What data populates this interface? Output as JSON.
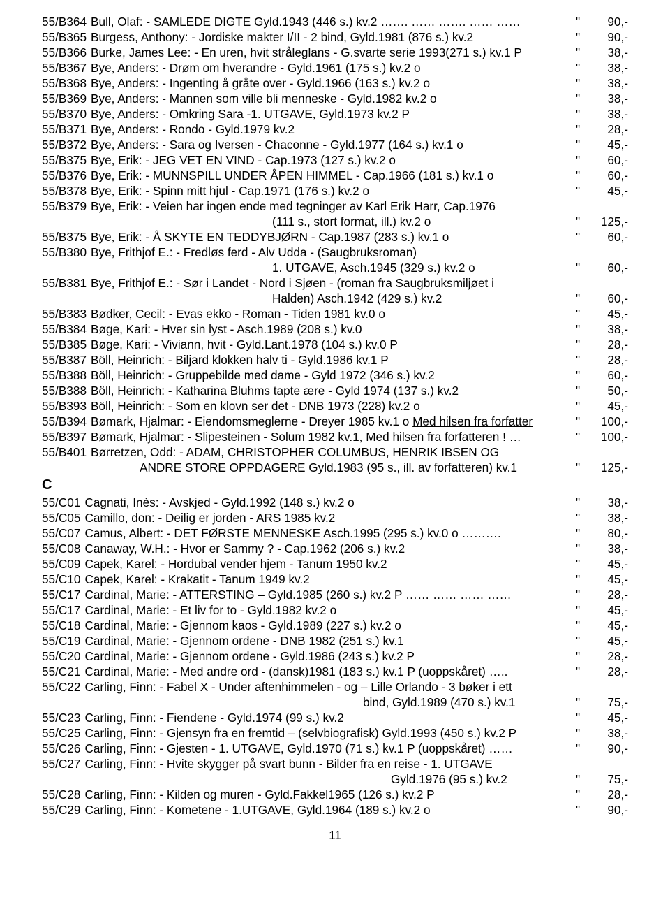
{
  "colors": {
    "text": "#000000",
    "bg": "#ffffff"
  },
  "typography": {
    "family": "Arial",
    "size_pt": 13,
    "line_height": 1.28
  },
  "page_number": "11",
  "section_letter": "C",
  "entries": [
    {
      "code": "55/B364",
      "desc": "Bull, Olaf: - SAMLEDE DIGTE Gyld.1943 (446 s.) kv.2 ……. …… ……. …… ……",
      "q": "\"",
      "price": "90,-",
      "dots": false
    },
    {
      "code": "55/B365",
      "desc": "Burgess, Anthony: - Jordiske makter I/II - 2 bind, Gyld.1981 (876 s.) kv.2",
      "q": "\"",
      "price": "90,-",
      "dots": true
    },
    {
      "code": "55/B366",
      "desc": "Burke, James Lee: - En uren, hvit stråleglans - G.svarte serie 1993(271 s.) kv.1 P",
      "q": "\"",
      "price": "38,-",
      "dots": false
    },
    {
      "code": "55/B367",
      "desc": "Bye, Anders: - Drøm om hverandre - Gyld.1961 (175 s.) kv.2 o",
      "q": "\"",
      "price": "38,-",
      "dots": true
    },
    {
      "code": "55/B368",
      "desc": "Bye, Anders: - Ingenting å gråte over - Gyld.1966 (163 s.) kv.2 o",
      "q": "\"",
      "price": "38,-",
      "dots": true
    },
    {
      "code": "55/B369",
      "desc": "Bye, Anders: - Mannen som ville bli menneske - Gyld.1982 kv.2 o",
      "q": "\"",
      "price": "38,-",
      "dots": true
    },
    {
      "code": "55/B370",
      "desc": "Bye, Anders: - Omkring Sara -1. UTGAVE, Gyld.1973 kv.2 P",
      "q": "\"",
      "price": "38,-",
      "dots": true
    },
    {
      "code": "55/B371",
      "desc": "Bye, Anders: - Rondo - Gyld.1979 kv.2",
      "q": "\"",
      "price": "28,-",
      "dots": true
    },
    {
      "code": "55/B372",
      "desc": "Bye, Anders: - Sara og Iversen - Chaconne - Gyld.1977 (164 s.) kv.1 o",
      "q": "\"",
      "price": "45,-",
      "dots": true
    },
    {
      "code": "55/B375",
      "desc": "Bye, Erik: - JEG VET EN VIND - Cap.1973 (127 s.) kv.2 o",
      "q": "\"",
      "price": "60,-",
      "dots": true
    },
    {
      "code": "55/B376",
      "desc": "Bye, Erik: - MUNNSPILL UNDER ÅPEN HIMMEL - Cap.1966 (181 s.) kv.1 o",
      "q": "\"",
      "price": "60,-",
      "dots": true
    },
    {
      "code": "55/B378",
      "desc": "Bye, Erik: - Spinn mitt hjul - Cap.1971 (176 s.) kv.2 o",
      "q": "\"",
      "price": "45,-",
      "dots": true
    },
    {
      "code": "55/B379",
      "desc": "Bye, Erik: - Veien har ingen ende med tegninger av Karl Erik Harr, Cap.1976",
      "cont": true
    },
    {
      "code": "",
      "desc": "(111 s., stort format, ill.) kv.2 o",
      "q": "\"",
      "price": "125,-",
      "dots": false,
      "indent": true
    },
    {
      "code": "55/B375",
      "desc": "Bye, Erik: - Å SKYTE EN TEDDYBJØRN - Cap.1987 (283 s.) kv.1 o",
      "q": "\"",
      "price": "60,-",
      "dots": true
    },
    {
      "code": "55/B380",
      "desc": "Bye, Frithjof E.: - Fredløs ferd - Alv Udda - (Saugbruksroman)",
      "cont": true
    },
    {
      "code": "",
      "desc": "1. UTGAVE, Asch.1945 (329 s.) kv.2 o",
      "q": "\"",
      "price": "60,-",
      "dots": false,
      "indent": true
    },
    {
      "code": "55/B381",
      "desc": "Bye, Frithjof E.: - Sør i Landet - Nord i Sjøen - (roman fra Saugbruksmiljøet i",
      "cont": true
    },
    {
      "code": "",
      "desc": "Halden) Asch.1942 (429 s.) kv.2",
      "q": "\"",
      "price": "60,-",
      "dots": false,
      "indent": true
    },
    {
      "code": "55/B383",
      "desc": "Bødker, Cecil: - Evas ekko - Roman - Tiden 1981 kv.0 o",
      "q": "\"",
      "price": "45,-",
      "dots": true
    },
    {
      "code": "55/B384",
      "desc": "Bøge, Kari: - Hver sin lyst - Asch.1989 (208 s.) kv.0",
      "q": "\"",
      "price": "38,-",
      "dots": true
    },
    {
      "code": "55/B385",
      "desc": "Bøge, Kari: - Viviann, hvit - Gyld.Lant.1978 (104 s.) kv.0 P",
      "q": "\"",
      "price": "28,-",
      "dots": true
    },
    {
      "code": "55/B387",
      "desc": "Böll, Heinrich: - Biljard klokken halv ti - Gyld.1986 kv.1 P",
      "q": "\"",
      "price": "28,-",
      "dots": true
    },
    {
      "code": "55/B388",
      "desc": "Böll, Heinrich: - Gruppebilde med dame - Gyld 1972 (346 s.) kv.2",
      "q": "\"",
      "price": "60,-",
      "dots": true
    },
    {
      "code": "55/B388",
      "desc": "Böll, Heinrich: - Katharina Bluhms tapte ære - Gyld 1974 (137 s.) kv.2",
      "q": "\"",
      "price": "50,-",
      "dots": true
    },
    {
      "code": "55/B393",
      "desc": "Böll, Heinrich: - Som en klovn ser det - DNB 1973 (228) kv.2 o",
      "q": "\"",
      "price": "45,-",
      "dots": true
    },
    {
      "code": "55/B394",
      "desc": "Bømark, Hjalmar: - Eiendomsmeglerne - Dreyer 1985 kv.1 o <u>Med hilsen fra forfatter</u>",
      "q": "\"",
      "price": "100,-",
      "dots": false
    },
    {
      "code": "55/B397",
      "desc": "Bømark, Hjalmar: - Slipesteinen - Solum 1982 kv.1, <u>Med hilsen fra forfatteren !</u> …",
      "q": "\"",
      "price": "100,-",
      "dots": false
    },
    {
      "code": "55/B401",
      "desc": "Børretzen, Odd: - ADAM, CHRISTOPHER COLUMBUS, HENRIK IBSEN OG",
      "cont": true
    },
    {
      "code": "",
      "desc": "ANDRE STORE OPPDAGERE Gyld.1983 (95 s., ill. av forfatteren) kv.1",
      "q": "\"",
      "price": "125,-",
      "dots": false,
      "indent3": true
    },
    {
      "code": "55/C01",
      "desc": "Cagnati, Inès: - Avskjed - Gyld.1992 (148 s.) kv.2 o",
      "q": "\"",
      "price": "38,-",
      "dots": true
    },
    {
      "code": "55/C05",
      "desc": "Camillo, don: - Deilig er jorden - ARS 1985 kv.2",
      "q": "\"",
      "price": "38,-",
      "dots": true
    },
    {
      "code": "55/C07",
      "desc": "Camus, Albert: - DET FØRSTE MENNESKE Asch.1995 (295 s.) kv.0 o ……….",
      "q": "\"",
      "price": "80,-",
      "dots": false
    },
    {
      "code": "55/C08",
      "desc": "Canaway, W.H.: - Hvor er Sammy ? - Cap.1962 (206 s.) kv.2",
      "q": "\"",
      "price": "38,-",
      "dots": true
    },
    {
      "code": "55/C09",
      "desc": "Capek, Karel: - Hordubal vender hjem - Tanum 1950 kv.2",
      "q": "\"",
      "price": "45,-",
      "dots": true
    },
    {
      "code": "55/C10",
      "desc": "Capek, Karel: - Krakatit - Tanum 1949 kv.2",
      "q": "\"",
      "price": "45,-",
      "dots": true
    },
    {
      "code": "55/C17",
      "desc": "Cardinal, Marie: - ATTERSTING – Gyld.1985 (260 s.) kv.2 P …… …… …… ……",
      "q": "\"",
      "price": "28,-",
      "dots": false
    },
    {
      "code": "55/C17",
      "desc": "Cardinal, Marie: - Et liv for to - Gyld.1982 kv.2 o",
      "q": "\"",
      "price": "45,-",
      "dots": true
    },
    {
      "code": "55/C18",
      "desc": "Cardinal, Marie: - Gjennom kaos - Gyld.1989 (227 s.) kv.2 o",
      "q": "\"",
      "price": "45,-",
      "dots": true
    },
    {
      "code": "55/C19",
      "desc": "Cardinal, Marie: - Gjennom ordene - DNB 1982 (251 s.) kv.1",
      "q": "\"",
      "price": "45,-",
      "dots": true
    },
    {
      "code": "55/C20",
      "desc": "Cardinal, Marie: - Gjennom ordene - Gyld.1986 (243 s.) kv.2 P",
      "q": "\"",
      "price": "28,-",
      "dots": true
    },
    {
      "code": "55/C21",
      "desc": "Cardinal, Marie: - Med andre ord - (dansk)1981 (183 s.) kv.1 P (uoppskåret) …..",
      "q": "\"",
      "price": "28,-",
      "dots": false
    },
    {
      "code": "55/C22",
      "desc": "Carling, Finn: - Fabel X - Under aftenhimmelen - og – Lille Orlando - 3 bøker i ett",
      "cont": true
    },
    {
      "code": "",
      "desc": "bind, Gyld.1989 (470 s.) kv.1",
      "q": "\"",
      "price": "75,-",
      "dots": false,
      "indent": true,
      "indentpx": 460
    },
    {
      "code": "55/C23",
      "desc": "Carling, Finn: - Fiendene - Gyld.1974 (99 s.) kv.2",
      "q": "\"",
      "price": "45,-",
      "dots": true
    },
    {
      "code": "55/C25",
      "desc": "Carling, Finn: - Gjensyn fra en fremtid – (selvbiografisk) Gyld.1993 (450 s.) kv.2 P",
      "q": "\"",
      "price": "38,-",
      "dots": false
    },
    {
      "code": "55/C26",
      "desc": "Carling, Finn: - Gjesten - 1. UTGAVE, Gyld.1970 (71 s.) kv.1 P (uoppskåret) ……",
      "q": "\"",
      "price": "90,-",
      "dots": false
    },
    {
      "code": "55/C27",
      "desc": "Carling, Finn: - Hvite skygger på svart bunn - Bilder fra en reise - 1. UTGAVE",
      "cont": true
    },
    {
      "code": "",
      "desc": "Gyld.1976 (95 s.) kv.2",
      "q": "\"",
      "price": "75,-",
      "dots": false,
      "indent": true,
      "indentpx": 500
    },
    {
      "code": "55/C28",
      "desc": "Carling, Finn: - Kilden og muren - Gyld.Fakkel1965 (126 s.) kv.2 P",
      "q": "\"",
      "price": "28,-",
      "dots": true
    },
    {
      "code": "55/C29",
      "desc": "Carling, Finn: - Kometene - 1.UTGAVE, Gyld.1964 (189 s.) kv.2 o",
      "q": "\"",
      "price": "90,-",
      "dots": true
    }
  ]
}
